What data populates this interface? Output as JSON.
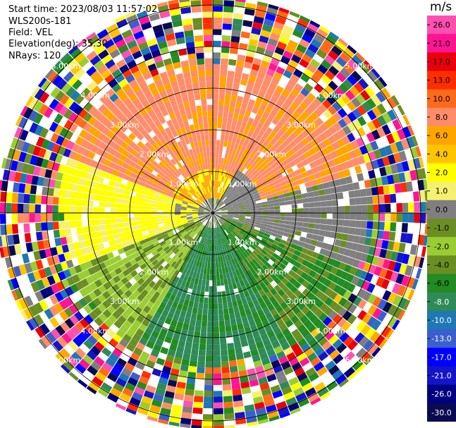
{
  "header": {
    "start_time": "Start time: 2023/08/03 11:57:02",
    "instrument": "WLS200s-181",
    "field": "Field: VEL",
    "elevation": "Elevation(deg): 35.30",
    "nrays": "NRays: 120"
  },
  "colorbar": {
    "unit": "m/s",
    "ticks": [
      "26.0",
      "21.0",
      "17.0",
      "13.0",
      "10.0",
      "8.0",
      "6.0",
      "4.0",
      "2.0",
      "1.0",
      "0.0",
      "-1.0",
      "-2.0",
      "-4.0",
      "-6.0",
      "-8.0",
      "-10.0",
      "-13.0",
      "-17.0",
      "-21.0",
      "-26.0",
      "-30.0"
    ],
    "colors": [
      "#ff4fb0",
      "#ff1493",
      "#e8000c",
      "#ff2d00",
      "#ff6a1a",
      "#ff8c69",
      "#ffa500",
      "#ffc400",
      "#ffff00",
      "#f5f070",
      "#7f7f7f",
      "#6b8e23",
      "#9acd32",
      "#6b8e23",
      "#228b22",
      "#2e8b57",
      "#1f77b4",
      "#3a5fcd",
      "#0000ff",
      "#1414c8",
      "#000080",
      "#0a0a50"
    ]
  },
  "chart_data": {
    "type": "heatmap",
    "projection": "polar PPI (radial velocity)",
    "nrays": 120,
    "range_unit": "km",
    "range_rings_km": [
      1.0,
      2.0,
      3.0,
      4.0,
      5.0
    ],
    "ring_labels": [
      "1.00km",
      "2.00km",
      "3.00km",
      "4.00km",
      "5.00km"
    ],
    "max_range_km": 5.2,
    "color_scale_unit": "m/s",
    "value_range": [
      -30.0,
      26.0
    ],
    "velocity_pattern_by_direction": [
      {
        "direction": "north / north-west",
        "velocity_ms": [
          6.0,
          8.0
        ]
      },
      {
        "direction": "west",
        "velocity_ms": [
          2.0,
          4.0
        ]
      },
      {
        "direction": "east",
        "velocity_ms": [
          -1.0,
          0.0
        ]
      },
      {
        "direction": "south",
        "velocity_ms": [
          -8.0,
          -4.0
        ]
      }
    ],
    "outer_region_km": [
      3.5,
      5.2
    ],
    "outer_region_description": "noise"
  }
}
